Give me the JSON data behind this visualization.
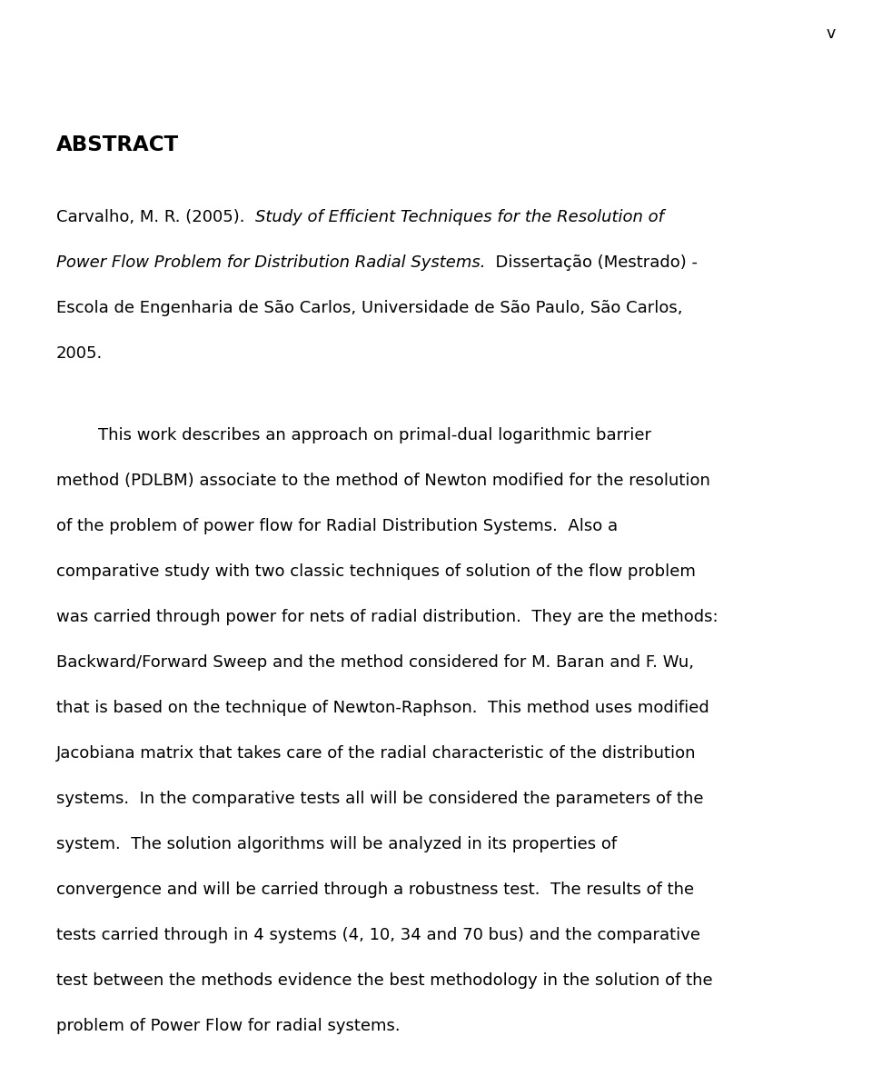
{
  "background_color": "#ffffff",
  "page_number": "v",
  "abstract_title": "ABSTRACT",
  "citation_normal_1": "Carvalho, M. R. (2005).  ",
  "citation_italic_1": "Study of Efficient Techniques for the Resolution of",
  "citation_italic_2": "Power Flow Problem for Distribution Radial Systems.",
  "citation_normal_2": "  Dissertação (Mestrado) -",
  "citation_normal_3": "Escola de Engenharia de São Carlos, Universidade de São Paulo, São Carlos,",
  "citation_normal_4": "2005.",
  "body_lines": [
    "        This work describes an approach on primal-dual logarithmic barrier",
    "method (PDLBM) associate to the method of Newton modified for the resolution",
    "of the problem of power flow for Radial Distribution Systems.  Also a",
    "comparative study with two classic techniques of solution of the flow problem",
    "was carried through power for nets of radial distribution.  They are the methods:",
    "Backward/Forward Sweep and the method considered for M. Baran and F. Wu,",
    "that is based on the technique of Newton-Raphson.  This method uses modified",
    "Jacobiana matrix that takes care of the radial characteristic of the distribution",
    "systems.  In the comparative tests all will be considered the parameters of the",
    "system.  The solution algorithms will be analyzed in its properties of",
    "convergence and will be carried through a robustness test.  The results of the",
    "tests carried through in 4 systems (4, 10, 34 and 70 bus) and the comparative",
    "test between the methods evidence the best methodology in the solution of the",
    "problem of Power Flow for radial systems."
  ],
  "font_family": "DejaVu Sans",
  "text_color": "#000000",
  "font_size": 13.0,
  "title_font_size": 16.5,
  "page_num_font_size": 12.5
}
